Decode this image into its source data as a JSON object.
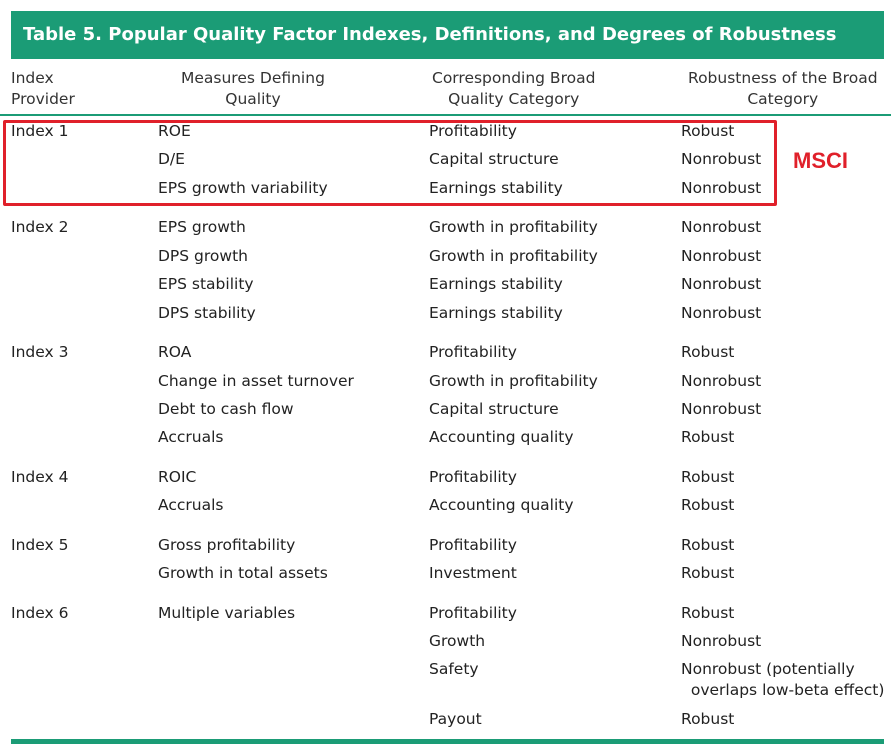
{
  "title": "Table 5.   Popular Quality Factor Indexes, Definitions, and Degrees of Robustness",
  "headers": {
    "provider": [
      "Index",
      "Provider"
    ],
    "measures": [
      "Measures Defining",
      "Quality"
    ],
    "category": [
      "Corresponding Broad",
      "Quality Category"
    ],
    "robustness": [
      "Robustness of the Broad",
      "Category"
    ]
  },
  "annotation": "MSCI",
  "rows": [
    {
      "provider": "Index 1",
      "measure": "ROE",
      "category": "Profitability",
      "robustness": "Robust"
    },
    {
      "provider": "",
      "measure": "D/E",
      "category": "Capital structure",
      "robustness": "Nonrobust"
    },
    {
      "provider": "",
      "measure": "EPS growth variability",
      "category": "Earnings stability",
      "robustness": "Nonrobust"
    },
    {
      "provider": "Index 2",
      "measure": "EPS growth",
      "category": "Growth in profitability",
      "robustness": "Nonrobust"
    },
    {
      "provider": "",
      "measure": "DPS growth",
      "category": "Growth in profitability",
      "robustness": "Nonrobust"
    },
    {
      "provider": "",
      "measure": "EPS stability",
      "category": "Earnings stability",
      "robustness": "Nonrobust"
    },
    {
      "provider": "",
      "measure": "DPS stability",
      "category": "Earnings stability",
      "robustness": "Nonrobust"
    },
    {
      "provider": "Index 3",
      "measure": "ROA",
      "category": "Profitability",
      "robustness": "Robust"
    },
    {
      "provider": "",
      "measure": "Change in asset turnover",
      "category": "Growth in profitability",
      "robustness": "Nonrobust"
    },
    {
      "provider": "",
      "measure": "Debt to cash flow",
      "category": "Capital structure",
      "robustness": "Nonrobust"
    },
    {
      "provider": "",
      "measure": "Accruals",
      "category": "Accounting quality",
      "robustness": "Robust"
    },
    {
      "provider": "Index 4",
      "measure": "ROIC",
      "category": "Profitability",
      "robustness": "Robust"
    },
    {
      "provider": "",
      "measure": "Accruals",
      "category": "Accounting quality",
      "robustness": "Robust"
    },
    {
      "provider": "Index 5",
      "measure": "Gross profitability",
      "category": "Profitability",
      "robustness": "Robust"
    },
    {
      "provider": "",
      "measure": "Growth in total assets",
      "category": "Investment",
      "robustness": "Robust"
    },
    {
      "provider": "Index 6",
      "measure": "Multiple variables",
      "category": "Profitability",
      "robustness": "Robust"
    },
    {
      "provider": "",
      "measure": "",
      "category": "Growth",
      "robustness": "Nonrobust"
    },
    {
      "provider": "",
      "measure": "",
      "category": "Safety",
      "robustness": "Nonrobust (potentially"
    },
    {
      "provider": "",
      "measure": "",
      "category": "",
      "robustness": "  overlaps low-beta effect)"
    },
    {
      "provider": "",
      "measure": "",
      "category": "Payout",
      "robustness": "Robust"
    }
  ]
}
